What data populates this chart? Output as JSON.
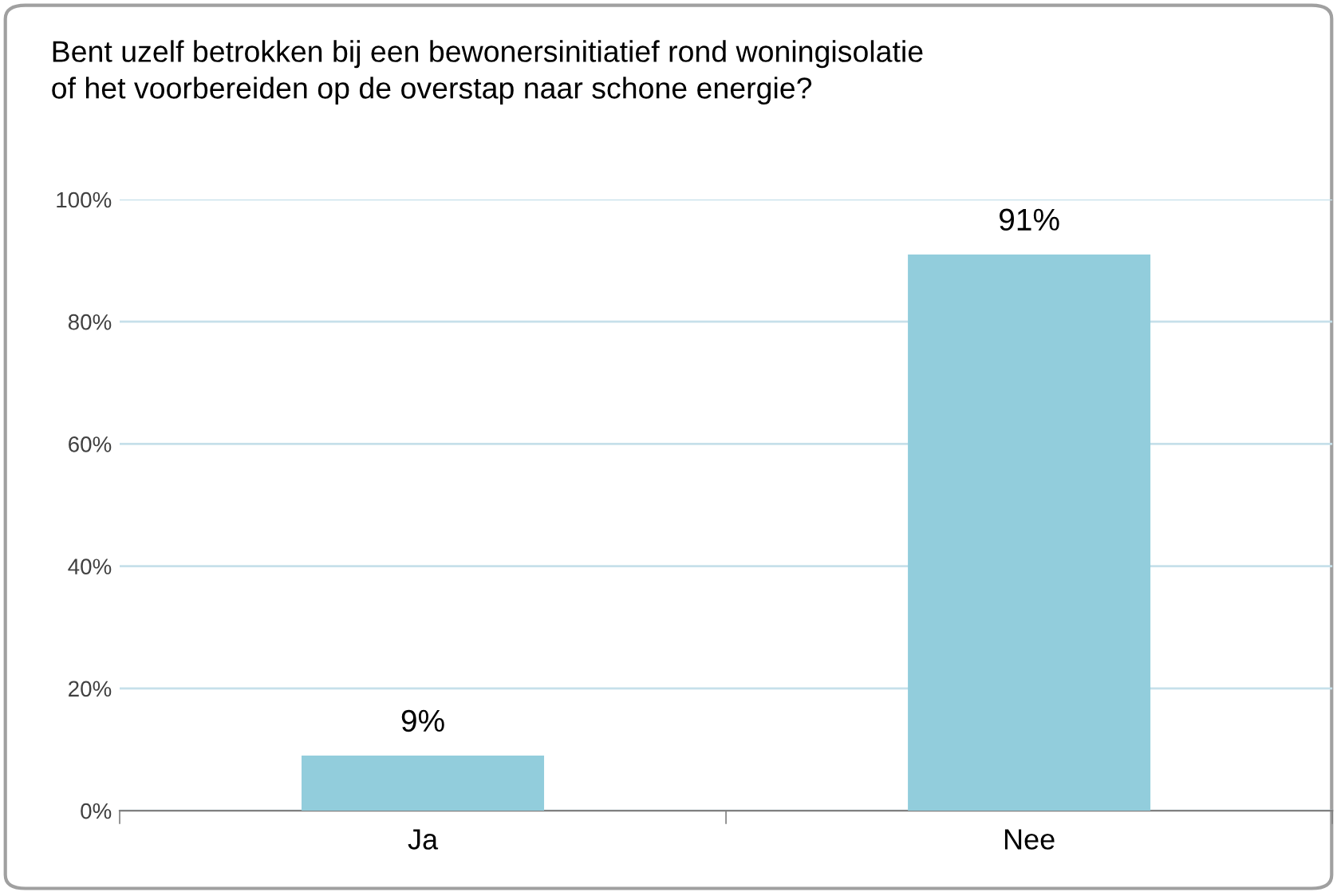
{
  "chart_data": {
    "type": "bar",
    "title": "Bent uzelf betrokken bij een bewonersinitiatief rond woningisolatie\nof het voorbereiden op de overstap naar schone energie?",
    "categories": [
      "Ja",
      "Nee"
    ],
    "values": [
      9,
      91
    ],
    "color": "#92cddc",
    "value_labels": [
      "9%",
      "91%"
    ],
    "ylim": [
      0,
      100
    ],
    "yticks": [
      {
        "value": 0,
        "label": "0%"
      },
      {
        "value": 20,
        "label": "20%"
      },
      {
        "value": 40,
        "label": "40%"
      },
      {
        "value": 60,
        "label": "60%"
      },
      {
        "value": 80,
        "label": "80%"
      },
      {
        "value": 100,
        "label": "100%"
      }
    ],
    "grid": "y"
  }
}
